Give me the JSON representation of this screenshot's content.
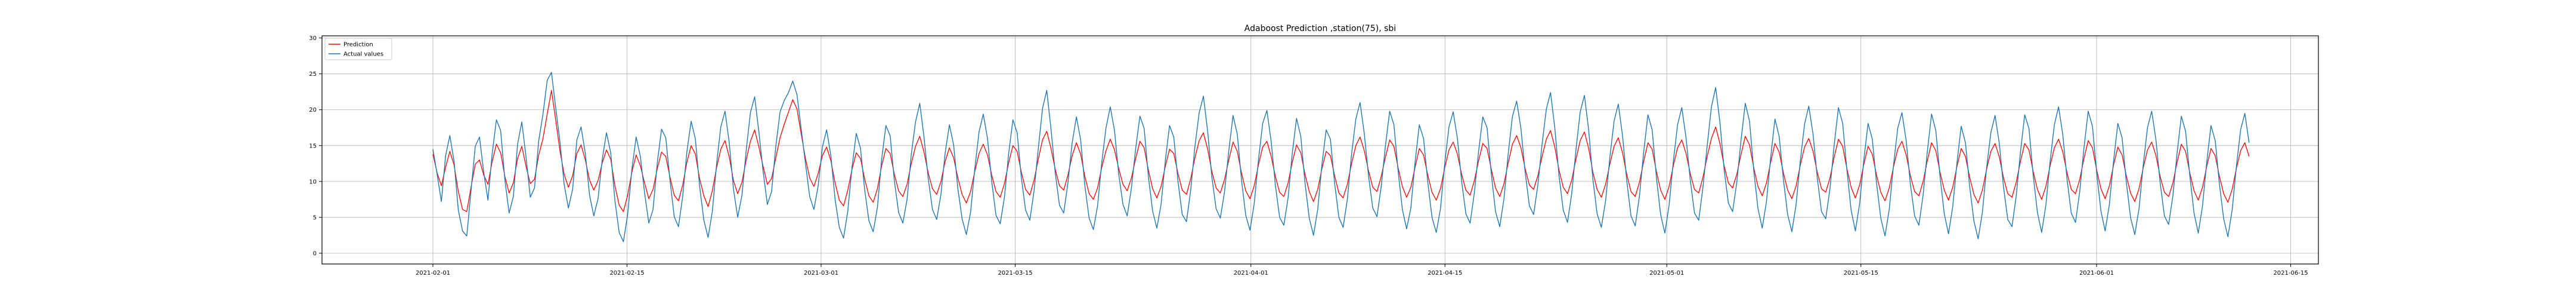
{
  "chart_data": {
    "type": "line",
    "title": "Adaboost Prediction ,station(75), sbi",
    "xlabel": "",
    "ylabel": "",
    "xlim": [
      "2021-01-24",
      "2021-06-17"
    ],
    "ylim": [
      -1.5,
      30.3
    ],
    "grid": true,
    "legend_position": "upper-left",
    "x_ticks": [
      "2021-02-01",
      "2021-02-15",
      "2021-03-01",
      "2021-03-15",
      "2021-04-01",
      "2021-04-15",
      "2021-05-01",
      "2021-05-15",
      "2021-06-01",
      "2021-06-15"
    ],
    "y_ticks": [
      0,
      5,
      10,
      15,
      20,
      25,
      30
    ],
    "x_range": [
      "2021-02-01",
      "2021-06-12"
    ],
    "series": [
      {
        "name": "Prediction",
        "color": "#ff0000",
        "values": [
          13.8,
          11.2,
          9.4,
          12.0,
          14.2,
          12.3,
          8.6,
          6.1,
          5.8,
          9.2,
          12.4,
          13.0,
          10.9,
          9.6,
          12.8,
          15.2,
          14.0,
          10.7,
          8.4,
          9.8,
          13.2,
          14.9,
          12.1,
          9.7,
          10.3,
          13.7,
          16.0,
          19.4,
          22.7,
          18.6,
          14.3,
          11.0,
          9.2,
          10.8,
          13.9,
          15.1,
          13.0,
          10.2,
          8.8,
          10.1,
          12.6,
          14.4,
          13.1,
          9.4,
          6.7,
          5.8,
          8.1,
          11.3,
          13.7,
          12.2,
          9.8,
          7.6,
          8.9,
          11.8,
          14.1,
          13.5,
          10.6,
          8.1,
          7.3,
          9.5,
          12.7,
          15.0,
          13.8,
          10.4,
          8.0,
          6.5,
          8.7,
          11.9,
          14.5,
          15.7,
          13.4,
          10.1,
          8.3,
          9.9,
          13.0,
          15.6,
          17.2,
          14.8,
          12.1,
          9.6,
          10.4,
          13.3,
          16.1,
          18.0,
          19.7,
          21.4,
          20.1,
          16.6,
          13.2,
          10.5,
          9.3,
          11.1,
          13.6,
          14.8,
          12.9,
          9.8,
          7.4,
          6.6,
          8.8,
          11.7,
          14.0,
          13.2,
          10.3,
          8.0,
          7.1,
          9.0,
          12.2,
          14.6,
          13.9,
          11.0,
          8.7,
          7.9,
          9.6,
          12.5,
          14.9,
          16.3,
          14.1,
          11.2,
          9.0,
          8.2,
          10.0,
          12.8,
          14.7,
          13.3,
          10.5,
          8.2,
          7.0,
          8.6,
          11.4,
          13.9,
          15.2,
          13.7,
          10.9,
          8.6,
          7.8,
          9.7,
          12.6,
          15.0,
          14.2,
          11.3,
          8.9,
          8.1,
          10.2,
          13.1,
          15.8,
          17.0,
          14.6,
          11.7,
          9.4,
          8.8,
          10.9,
          13.6,
          15.4,
          13.8,
          10.7,
          8.3,
          7.5,
          9.1,
          12.0,
          14.3,
          15.9,
          14.4,
          11.8,
          9.6,
          8.7,
          10.5,
          13.2,
          15.6,
          14.7,
          11.6,
          9.0,
          7.7,
          9.3,
          12.1,
          14.5,
          13.9,
          11.1,
          8.8,
          8.2,
          10.4,
          13.3,
          15.7,
          16.8,
          14.5,
          11.4,
          9.1,
          8.4,
          10.3,
          13.0,
          15.5,
          14.2,
          11.2,
          8.7,
          7.6,
          9.4,
          12.3,
          14.8,
          15.6,
          13.5,
          10.7,
          8.5,
          7.9,
          9.8,
          12.7,
          15.1,
          14.0,
          11.0,
          8.6,
          7.2,
          8.9,
          11.8,
          14.2,
          13.6,
          10.8,
          8.4,
          7.7,
          9.6,
          12.5,
          15.0,
          16.2,
          14.3,
          11.5,
          9.2,
          8.6,
          10.7,
          13.4,
          15.8,
          14.9,
          11.9,
          9.3,
          7.8,
          9.2,
          12.0,
          14.6,
          13.7,
          10.9,
          8.5,
          7.4,
          9.0,
          11.9,
          14.4,
          15.5,
          13.8,
          11.0,
          8.8,
          8.1,
          10.1,
          12.9,
          15.3,
          14.6,
          11.7,
          9.1,
          7.9,
          9.7,
          12.6,
          15.2,
          16.4,
          14.7,
          11.8,
          9.5,
          8.9,
          10.8,
          13.5,
          15.9,
          17.1,
          14.8,
          11.6,
          9.2,
          8.3,
          10.2,
          13.1,
          15.7,
          16.9,
          14.6,
          11.3,
          8.9,
          7.8,
          9.6,
          12.4,
          14.9,
          16.1,
          14.0,
          11.0,
          8.6,
          7.9,
          9.9,
          12.8,
          15.4,
          14.5,
          11.4,
          8.8,
          7.5,
          9.3,
          12.2,
          14.7,
          15.8,
          13.9,
          11.1,
          8.9,
          8.4,
          10.6,
          13.5,
          16.0,
          17.6,
          15.3,
          12.2,
          9.8,
          9.1,
          11.0,
          13.8,
          16.3,
          15.1,
          11.9,
          9.3,
          8.0,
          9.8,
          12.7,
          15.3,
          14.1,
          11.2,
          8.8,
          7.6,
          9.4,
          12.3,
          14.8,
          16.0,
          14.2,
          11.3,
          9.0,
          8.5,
          10.5,
          13.4,
          15.9,
          14.9,
          11.8,
          9.2,
          7.7,
          9.5,
          12.4,
          14.9,
          13.8,
          10.9,
          8.5,
          7.3,
          9.1,
          12.0,
          14.5,
          15.6,
          13.7,
          10.8,
          8.6,
          8.0,
          10.0,
          12.9,
          15.4,
          14.3,
          11.3,
          8.8,
          7.4,
          9.2,
          12.1,
          14.6,
          13.5,
          10.6,
          8.2,
          7.0,
          8.8,
          11.7,
          14.2,
          15.3,
          13.4,
          10.5,
          8.3,
          7.8,
          9.9,
          12.8,
          15.3,
          14.4,
          11.4,
          8.9,
          7.5,
          9.3,
          12.2,
          14.7,
          15.9,
          14.1,
          11.2,
          8.9,
          8.3,
          10.3,
          13.2,
          15.7,
          14.7,
          11.6,
          9.0,
          7.6,
          9.4,
          12.3,
          14.8,
          13.7,
          10.8,
          8.4,
          7.2,
          9.0,
          11.9,
          14.4,
          15.5,
          13.6,
          10.7,
          8.5,
          7.9,
          9.8,
          12.7,
          15.2,
          14.2,
          11.2,
          8.7,
          7.4,
          9.2,
          12.1,
          14.6,
          13.6,
          10.7,
          8.3,
          7.1,
          8.9,
          11.8,
          14.3,
          15.4,
          13.5
        ]
      },
      {
        "name": "Actual values",
        "color": "#1f77b4",
        "values": [
          14.5,
          11.0,
          7.2,
          13.6,
          16.4,
          12.8,
          6.0,
          3.1,
          2.4,
          8.7,
          14.9,
          16.2,
          11.3,
          7.4,
          13.9,
          18.6,
          17.1,
          10.2,
          5.6,
          7.9,
          15.2,
          18.3,
          13.4,
          7.8,
          9.1,
          15.7,
          19.4,
          24.1,
          25.2,
          20.3,
          15.6,
          9.6,
          6.3,
          8.9,
          15.8,
          17.6,
          13.9,
          8.1,
          5.2,
          7.6,
          13.1,
          16.8,
          14.0,
          7.3,
          2.9,
          1.6,
          5.4,
          11.7,
          16.2,
          13.5,
          8.4,
          4.2,
          6.1,
          12.6,
          17.3,
          16.1,
          10.2,
          5.1,
          3.7,
          7.9,
          14.2,
          18.4,
          15.9,
          9.3,
          4.6,
          2.2,
          5.8,
          12.4,
          17.6,
          19.8,
          15.4,
          8.9,
          5.0,
          8.1,
          14.3,
          19.6,
          21.8,
          16.9,
          11.4,
          6.8,
          8.6,
          14.9,
          19.7,
          21.3,
          22.4,
          24.0,
          22.1,
          17.3,
          12.5,
          7.9,
          6.1,
          9.4,
          14.8,
          17.2,
          13.6,
          7.5,
          3.6,
          2.1,
          5.9,
          12.0,
          16.7,
          14.6,
          8.8,
          4.5,
          3.0,
          6.4,
          13.1,
          17.8,
          16.4,
          10.1,
          5.7,
          4.2,
          7.5,
          13.8,
          18.3,
          20.9,
          16.2,
          10.4,
          6.1,
          4.7,
          8.2,
          14.0,
          17.9,
          15.1,
          9.0,
          4.8,
          2.6,
          5.7,
          11.8,
          16.9,
          19.4,
          16.0,
          10.0,
          5.3,
          4.1,
          7.8,
          13.9,
          18.6,
          16.8,
          10.5,
          6.0,
          4.6,
          8.7,
          14.6,
          20.2,
          22.7,
          17.3,
          11.2,
          6.7,
          5.6,
          9.8,
          15.4,
          19.0,
          15.8,
          9.4,
          4.9,
          3.3,
          6.6,
          12.7,
          17.5,
          20.4,
          17.1,
          11.0,
          6.8,
          5.2,
          9.1,
          14.6,
          19.1,
          17.4,
          10.7,
          5.9,
          3.5,
          6.8,
          12.9,
          17.8,
          16.2,
          10.0,
          5.4,
          4.4,
          8.8,
          14.9,
          19.6,
          21.9,
          17.0,
          10.6,
          6.2,
          4.9,
          8.6,
          14.3,
          19.2,
          16.6,
          10.2,
          5.3,
          3.2,
          6.9,
          13.0,
          18.1,
          19.9,
          15.6,
          9.5,
          5.0,
          3.9,
          7.7,
          14.0,
          18.8,
          16.3,
          9.8,
          4.9,
          2.5,
          6.1,
          12.4,
          17.2,
          15.9,
          9.7,
          5.0,
          3.6,
          7.5,
          13.8,
          18.7,
          21.0,
          16.7,
          10.8,
          6.3,
          5.1,
          9.3,
          15.0,
          19.8,
          17.9,
          11.4,
          6.1,
          3.4,
          6.3,
          12.7,
          17.9,
          16.0,
          9.9,
          5.0,
          2.9,
          6.2,
          12.5,
          17.6,
          19.7,
          16.0,
          10.0,
          5.5,
          4.2,
          8.4,
          14.2,
          19.0,
          17.5,
          11.1,
          5.8,
          3.7,
          7.6,
          13.9,
          19.1,
          21.2,
          17.4,
          11.3,
          6.6,
          5.4,
          9.5,
          15.2,
          20.1,
          22.4,
          17.5,
          10.8,
          6.0,
          4.3,
          8.3,
          14.4,
          19.7,
          22.0,
          17.2,
          10.3,
          5.5,
          3.6,
          7.3,
          13.3,
          18.4,
          20.8,
          16.4,
          10.1,
          5.2,
          3.8,
          8.0,
          14.1,
          19.3,
          17.2,
          10.6,
          5.4,
          2.8,
          6.7,
          12.8,
          17.9,
          20.3,
          16.1,
          10.2,
          5.6,
          4.6,
          9.2,
          15.0,
          20.4,
          23.1,
          18.3,
          11.7,
          7.0,
          5.8,
          9.9,
          15.8,
          20.9,
          18.4,
          11.5,
          6.2,
          3.5,
          7.2,
          13.4,
          18.7,
          16.3,
          10.3,
          5.4,
          3.0,
          6.8,
          12.9,
          18.0,
          20.5,
          16.6,
          10.5,
          5.8,
          4.8,
          9.0,
          15.1,
          20.3,
          18.1,
          11.6,
          6.0,
          3.1,
          6.9,
          13.0,
          18.1,
          15.9,
          9.8,
          4.9,
          2.4,
          6.1,
          12.2,
          17.4,
          19.6,
          15.7,
          9.6,
          5.2,
          3.9,
          8.1,
          14.2,
          19.4,
          17.1,
          10.7,
          5.5,
          2.7,
          6.5,
          12.6,
          17.7,
          15.4,
          9.3,
          4.5,
          2.0,
          5.7,
          11.9,
          16.8,
          19.2,
          15.3,
          9.2,
          4.7,
          3.7,
          8.0,
          14.1,
          19.3,
          17.4,
          10.9,
          5.7,
          2.9,
          6.7,
          12.8,
          17.9,
          20.4,
          16.5,
          10.3,
          5.6,
          4.3,
          8.6,
          14.7,
          19.8,
          17.7,
          11.2,
          5.9,
          3.1,
          6.8,
          12.9,
          18.1,
          16.1,
          9.9,
          5.0,
          2.6,
          6.2,
          12.3,
          17.5,
          19.8,
          15.8,
          9.8,
          5.2,
          4.0,
          8.0,
          14.0,
          19.1,
          17.0,
          10.8,
          5.6,
          2.8,
          6.6,
          12.7,
          17.8,
          15.7,
          9.6,
          4.8,
          2.3,
          6.0,
          12.1,
          17.2,
          19.5,
          15.4
        ]
      }
    ]
  }
}
